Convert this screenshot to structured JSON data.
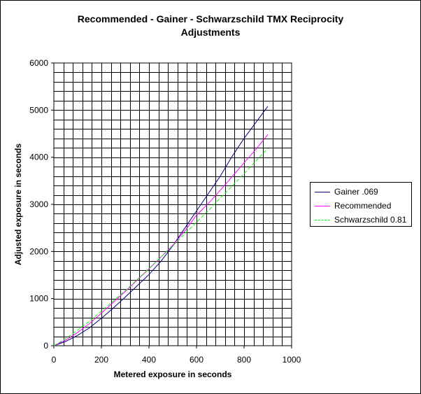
{
  "chart_data": {
    "type": "line",
    "title_lines": [
      "Recommended - Gainer - Schwarzschild TMX Reciprocity",
      "Adjustments"
    ],
    "xlabel": "Metered exposure in seconds",
    "ylabel": "Adjusted exposure in seconds",
    "xlim": [
      0,
      1000
    ],
    "ylim": [
      0,
      6000
    ],
    "xticks": [
      0,
      200,
      400,
      600,
      800,
      1000
    ],
    "yticks": [
      0,
      1000,
      2000,
      3000,
      4000,
      5000,
      6000
    ],
    "grid": true,
    "legend_position": "right",
    "series": [
      {
        "name": "Gainer .069",
        "color": "#000080",
        "dash": "",
        "x": [
          0,
          50,
          100,
          150,
          200,
          250,
          300,
          350,
          400,
          450,
          500,
          550,
          600,
          650,
          700,
          750,
          800,
          850,
          900
        ],
        "y": [
          0,
          90,
          220,
          380,
          580,
          800,
          1030,
          1270,
          1510,
          1790,
          2120,
          2490,
          2860,
          3230,
          3600,
          4020,
          4400,
          4740,
          5080
        ]
      },
      {
        "name": "Recommended",
        "color": "#ff00ff",
        "dash": "",
        "x": [
          0,
          50,
          100,
          150,
          200,
          250,
          300,
          350,
          400,
          450,
          500,
          550,
          600,
          650,
          700,
          750,
          800,
          850,
          900
        ],
        "y": [
          0,
          120,
          280,
          470,
          690,
          920,
          1150,
          1390,
          1630,
          1880,
          2130,
          2430,
          2770,
          3020,
          3300,
          3590,
          3880,
          4170,
          4480
        ]
      },
      {
        "name": "Schwarzschild 0.81",
        "color": "#00ff00",
        "dash": "5,3",
        "x": [
          0,
          50,
          100,
          150,
          200,
          250,
          300,
          350,
          400,
          450,
          500,
          550,
          600,
          650,
          700,
          750,
          800,
          850,
          900
        ],
        "y": [
          0,
          150,
          330,
          520,
          730,
          950,
          1170,
          1400,
          1640,
          1880,
          2120,
          2370,
          2620,
          2870,
          3130,
          3390,
          3650,
          3920,
          4190
        ]
      }
    ]
  }
}
